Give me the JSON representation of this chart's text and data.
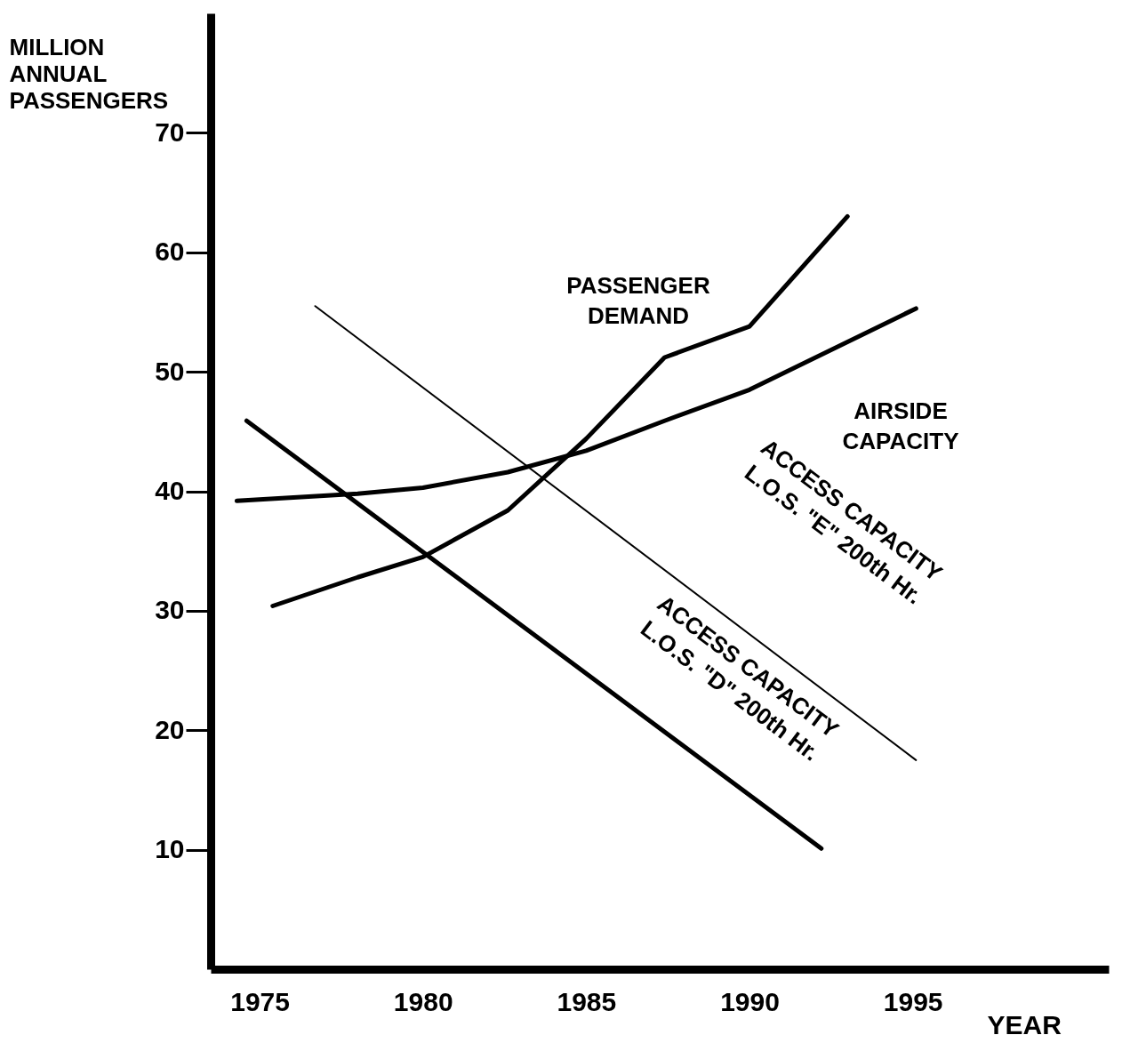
{
  "chart_data": {
    "type": "line",
    "xlabel": "YEAR",
    "ylabel": "MILLION\nANNUAL\nPASSENGERS",
    "xlim": [
      1973.5,
      2001
    ],
    "xticks": [
      {
        "value": 1975,
        "label": "1975"
      },
      {
        "value": 1980,
        "label": "1980"
      },
      {
        "value": 1985,
        "label": "1985"
      },
      {
        "value": 1990,
        "label": "1990"
      },
      {
        "value": 1995,
        "label": "1995"
      }
    ],
    "ylim": [
      0,
      80
    ],
    "yticks": [
      10,
      20,
      30,
      40,
      50,
      60,
      70
    ],
    "grid": false,
    "series": [
      {
        "name": "PASSENGER\nDEMAND",
        "color": "#000000",
        "x": [
          1975.4,
          1978,
          1980,
          1982.6,
          1985,
          1987.4,
          1990,
          1993
        ],
        "values": [
          30.4,
          32.8,
          34.5,
          38.4,
          44.4,
          51.2,
          53.8,
          63.0
        ]
      },
      {
        "name": "AIRSIDE\nCAPACITY",
        "color": "#000000",
        "x": [
          1974.3,
          1978,
          1980,
          1982.6,
          1985,
          1987.4,
          1990,
          1995.1
        ],
        "values": [
          39.2,
          39.8,
          40.3,
          41.6,
          43.4,
          45.9,
          48.5,
          55.3
        ]
      },
      {
        "name": "ACCESS CAPACITY\nL.O.S. \"E\" 200th Hr.",
        "color": "#000000",
        "x": [
          1976.7,
          1995.1
        ],
        "values": [
          55.5,
          17.5
        ]
      },
      {
        "name": "ACCESS CAPACITY\nL.O.S. \"D\" 200th Hr.",
        "color": "#000000",
        "x": [
          1974.6,
          1992.2
        ],
        "values": [
          45.9,
          10.1
        ]
      }
    ]
  }
}
